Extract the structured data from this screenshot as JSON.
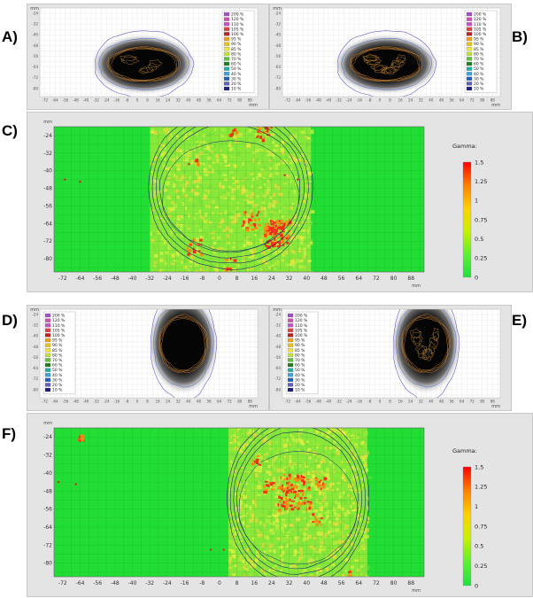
{
  "panels": {
    "a": {
      "letter": "A)",
      "unit": "mm"
    },
    "b": {
      "letter": "B)",
      "unit": "mm"
    },
    "c": {
      "letter": "C)",
      "unit": "mm"
    },
    "d": {
      "letter": "D)",
      "unit": "mm"
    },
    "e": {
      "letter": "E)",
      "unit": "mm"
    },
    "f": {
      "letter": "F)",
      "unit": "mm"
    }
  },
  "axes": {
    "x_ticks": [
      "-72",
      "-64",
      "-56",
      "-48",
      "-40",
      "-32",
      "-24",
      "-16",
      "-8",
      "0",
      "8",
      "16",
      "24",
      "32",
      "40",
      "48",
      "56",
      "64",
      "72",
      "80",
      "88"
    ],
    "y_ticks": [
      "-24",
      "-32",
      "-40",
      "-48",
      "-56",
      "-64",
      "-72",
      "-80"
    ],
    "x_range": [
      -76,
      94
    ],
    "y_range": [
      -20,
      -86
    ]
  },
  "isodose_legend": [
    {
      "label": "200 %",
      "color": "#a050c8"
    },
    {
      "label": "120 %",
      "color": "#d050b0"
    },
    {
      "label": "110 %",
      "color": "#c850c8"
    },
    {
      "label": "105 %",
      "color": "#e04040"
    },
    {
      "label": "100 %",
      "color": "#c02020"
    },
    {
      "label": "95 %",
      "color": "#f0a020"
    },
    {
      "label": "90 %",
      "color": "#e8c020"
    },
    {
      "label": "85 %",
      "color": "#f0e040"
    },
    {
      "label": "80 %",
      "color": "#c0e040"
    },
    {
      "label": "70 %",
      "color": "#60c040"
    },
    {
      "label": "60 %",
      "color": "#208020"
    },
    {
      "label": "50 %",
      "color": "#20b0a0"
    },
    {
      "label": "40 %",
      "color": "#40a0e0"
    },
    {
      "label": "30 %",
      "color": "#2060c0"
    },
    {
      "label": "20 %",
      "color": "#6060c0"
    },
    {
      "label": "10 %",
      "color": "#202080"
    }
  ],
  "gamma_legend": {
    "title": "Gamma:",
    "ticks": [
      "1.5",
      "1.25",
      "1",
      "0.75",
      "0.5",
      "0.25",
      "0"
    ],
    "colors": [
      "#ff0000",
      "#ff8000",
      "#ffd000",
      "#c8f000",
      "#60f030",
      "#20e040"
    ]
  }
}
